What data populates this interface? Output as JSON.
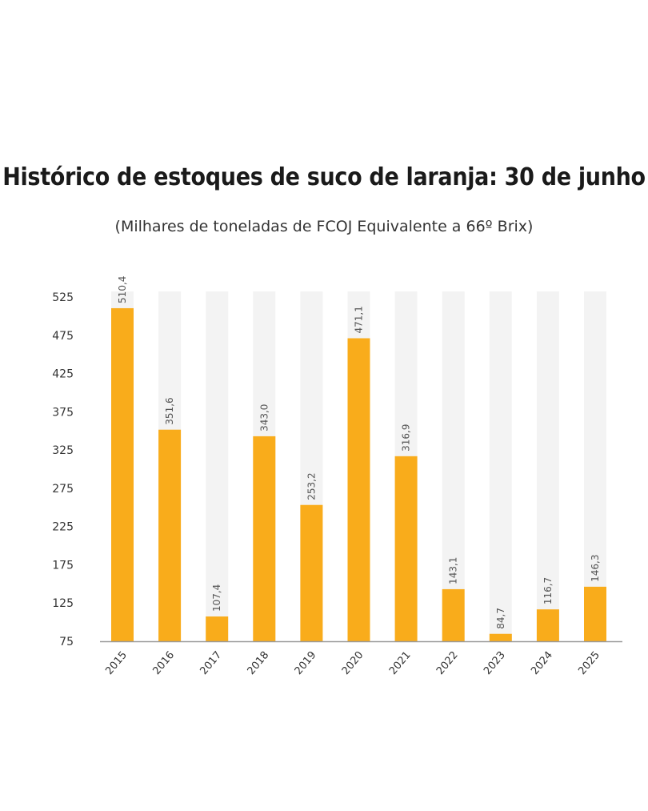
{
  "chart_data": {
    "type": "bar",
    "title": "Histórico de estoques de suco de laranja: 30 de junho",
    "subtitle": "(Milhares de toneladas de FCOJ Equivalente a 66º Brix)",
    "categories": [
      "2015",
      "2016",
      "2017",
      "2018",
      "2019",
      "2020",
      "2021",
      "2022",
      "2023",
      "2024",
      "2025"
    ],
    "values": [
      510.4,
      351.6,
      107.4,
      343.0,
      253.2,
      471.1,
      316.9,
      143.1,
      84.7,
      116.7,
      146.3
    ],
    "value_labels": [
      "510,4",
      "351,6",
      "107,4",
      "343,0",
      "253,2",
      "471,1",
      "316,9",
      "143,1",
      "84,7",
      "116,7",
      "146,3"
    ],
    "yticks": [
      75,
      125,
      175,
      225,
      275,
      325,
      375,
      425,
      475,
      525
    ],
    "ylim": [
      75,
      525
    ],
    "xlabel": "",
    "ylabel": "",
    "grid": false,
    "legend": "none",
    "bar_color": "#F9AC1B",
    "track_color": "#F3F3F3",
    "axis_color": "#999999"
  }
}
